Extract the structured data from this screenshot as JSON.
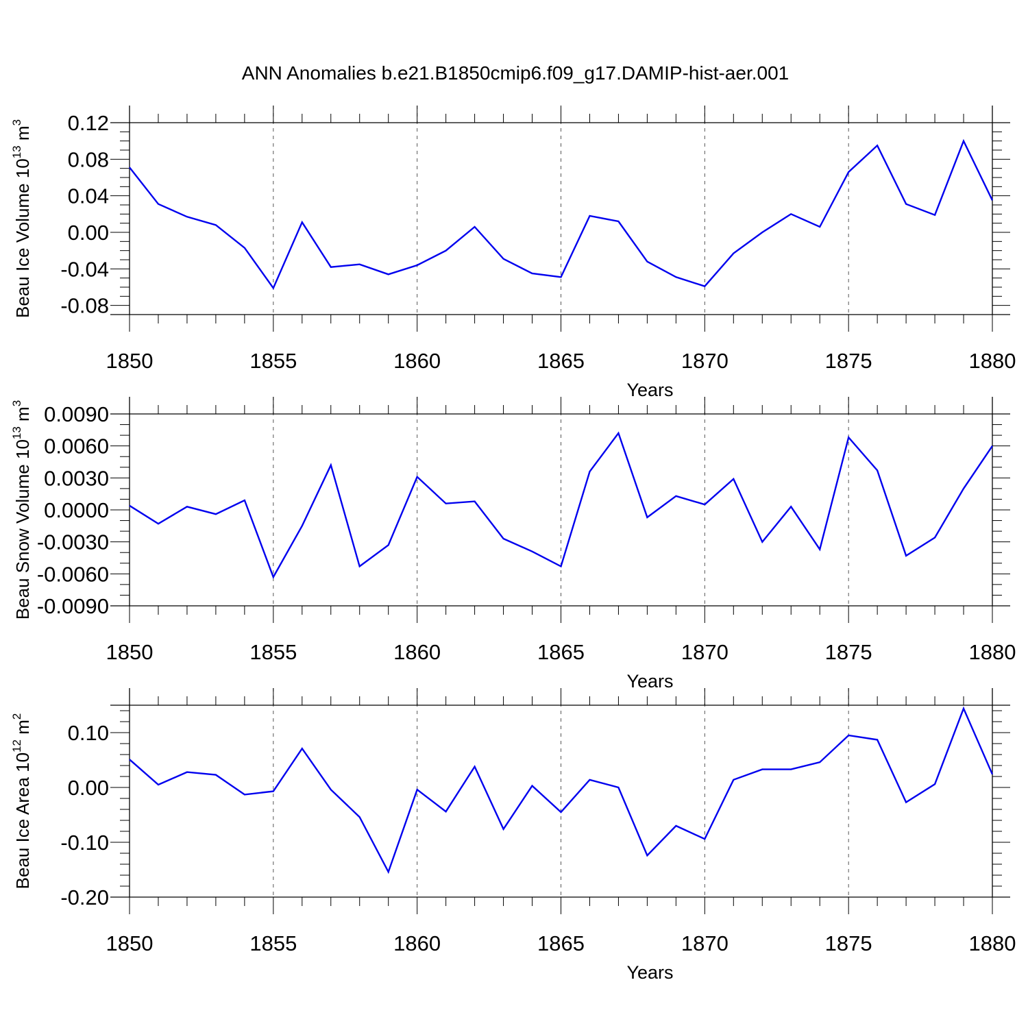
{
  "title": "ANN Anomalies b.e21.B1850cmip6.f09_g17.DAMIP-hist-aer.001",
  "colors": {
    "series": "#0000ee",
    "axis": "#000000",
    "grid": "#555555"
  },
  "chart_data": [
    {
      "type": "line",
      "xlabel": "Years",
      "ylabel": {
        "text": "Beau Ice Volume 10",
        "sup": "13",
        "unit": " m",
        "unit_sup": "3"
      },
      "xlim": [
        1850,
        1880
      ],
      "ylim": [
        -0.09,
        0.12
      ],
      "yticks": [
        -0.08,
        -0.04,
        0.0,
        0.04,
        0.08,
        0.12
      ],
      "ytick_labels": [
        "-0.08",
        "-0.04",
        "0.00",
        "0.04",
        "0.08",
        "0.12"
      ],
      "yminor_step": 0.01,
      "xticks": [
        1850,
        1855,
        1860,
        1865,
        1870,
        1875,
        1880
      ],
      "xtick_labels": [
        "1850",
        "1855",
        "1860",
        "1865",
        "1870",
        "1875",
        "1880"
      ],
      "x": [
        1850,
        1851,
        1852,
        1853,
        1854,
        1855,
        1856,
        1857,
        1858,
        1859,
        1860,
        1861,
        1862,
        1863,
        1864,
        1865,
        1866,
        1867,
        1868,
        1869,
        1870,
        1871,
        1872,
        1873,
        1874,
        1875,
        1876,
        1877,
        1878,
        1879,
        1880
      ],
      "y": [
        0.071,
        0.031,
        0.017,
        0.008,
        -0.017,
        -0.061,
        0.011,
        -0.038,
        -0.035,
        -0.046,
        -0.036,
        -0.02,
        0.006,
        -0.029,
        -0.045,
        -0.049,
        0.018,
        0.012,
        -0.032,
        -0.049,
        -0.059,
        -0.023,
        0.0,
        0.02,
        0.006,
        0.066,
        0.095,
        0.031,
        0.019,
        0.1,
        0.035
      ]
    },
    {
      "type": "line",
      "xlabel": "Years",
      "ylabel": {
        "text": "Beau Snow Volume 10",
        "sup": "13",
        "unit": " m",
        "unit_sup": "3"
      },
      "xlim": [
        1850,
        1880
      ],
      "ylim": [
        -0.009,
        0.009
      ],
      "yticks": [
        -0.009,
        -0.006,
        -0.003,
        0.0,
        0.003,
        0.006,
        0.009
      ],
      "ytick_labels": [
        "-0.0090",
        "-0.0060",
        "-0.0030",
        "0.0000",
        "0.0030",
        "0.0060",
        "0.0090"
      ],
      "yminor_step": 0.001,
      "xticks": [
        1850,
        1855,
        1860,
        1865,
        1870,
        1875,
        1880
      ],
      "xtick_labels": [
        "1850",
        "1855",
        "1860",
        "1865",
        "1870",
        "1875",
        "1880"
      ],
      "x": [
        1850,
        1851,
        1852,
        1853,
        1854,
        1855,
        1856,
        1857,
        1858,
        1859,
        1860,
        1861,
        1862,
        1863,
        1864,
        1865,
        1866,
        1867,
        1868,
        1869,
        1870,
        1871,
        1872,
        1873,
        1874,
        1875,
        1876,
        1877,
        1878,
        1879,
        1880
      ],
      "y": [
        0.0004,
        -0.0013,
        0.0003,
        -0.0004,
        0.0009,
        -0.0063,
        -0.0015,
        0.0042,
        -0.0053,
        -0.0033,
        0.0031,
        0.0006,
        0.0008,
        -0.0027,
        -0.0039,
        -0.0053,
        0.0036,
        0.0072,
        -0.0007,
        0.0013,
        0.0005,
        0.0029,
        -0.003,
        0.0003,
        -0.0037,
        0.0068,
        0.0037,
        -0.0043,
        -0.0026,
        0.002,
        0.006
      ]
    },
    {
      "type": "line",
      "xlabel": "Years",
      "ylabel": {
        "text": "Beau Ice Area 10",
        "sup": "12",
        "unit": " m",
        "unit_sup": "2"
      },
      "xlim": [
        1850,
        1880
      ],
      "ylim": [
        -0.2,
        0.15
      ],
      "yticks": [
        -0.2,
        -0.1,
        0.0,
        0.1
      ],
      "ytick_labels": [
        "-0.20",
        "-0.10",
        "0.00",
        "0.10"
      ],
      "yminor_step": 0.02,
      "xticks": [
        1850,
        1855,
        1860,
        1865,
        1870,
        1875,
        1880
      ],
      "xtick_labels": [
        "1850",
        "1855",
        "1860",
        "1865",
        "1870",
        "1875",
        "1880"
      ],
      "x": [
        1850,
        1851,
        1852,
        1853,
        1854,
        1855,
        1856,
        1857,
        1858,
        1859,
        1860,
        1861,
        1862,
        1863,
        1864,
        1865,
        1866,
        1867,
        1868,
        1869,
        1870,
        1871,
        1872,
        1873,
        1874,
        1875,
        1876,
        1877,
        1878,
        1879,
        1880
      ],
      "y": [
        0.051,
        0.005,
        0.028,
        0.023,
        -0.013,
        -0.007,
        0.071,
        -0.004,
        -0.054,
        -0.154,
        -0.004,
        -0.044,
        0.038,
        -0.076,
        0.003,
        -0.045,
        0.014,
        0.0,
        -0.124,
        -0.07,
        -0.094,
        0.014,
        0.033,
        0.033,
        0.046,
        0.095,
        0.087,
        -0.027,
        0.006,
        0.144,
        0.024
      ]
    }
  ]
}
